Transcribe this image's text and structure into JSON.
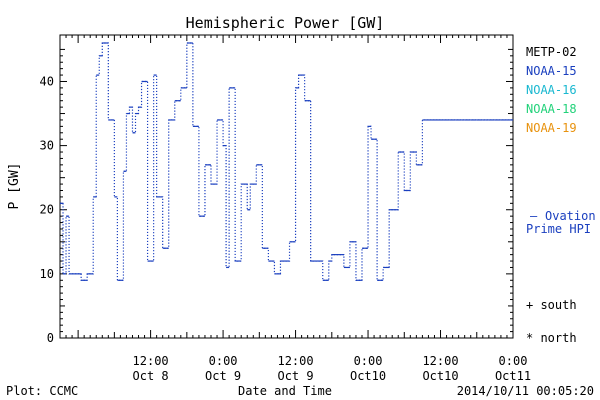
{
  "chart_data": {
    "type": "line",
    "title": "Hemispheric Power [GW]",
    "xlabel": "Date and Time",
    "ylabel": "P [GW]",
    "ylim": [
      0,
      46
    ],
    "y_ticks": [
      0,
      10,
      20,
      30,
      40
    ],
    "x_ticks": [
      {
        "time": "12:00",
        "date": "Oct 8"
      },
      {
        "time": "0:00",
        "date": "Oct 9"
      },
      {
        "time": "12:00",
        "date": "Oct 9"
      },
      {
        "time": "0:00",
        "date": "Oct10"
      },
      {
        "time": "12:00",
        "date": "Oct10"
      },
      {
        "time": "0:00",
        "date": "Oct11"
      }
    ],
    "x_range": [
      "2014-10-07 21:00",
      "2014-10-11 00:00"
    ],
    "grid": false,
    "legend": [
      {
        "name": "METP-02",
        "color": "#000000"
      },
      {
        "name": "NOAA-15",
        "color": "#1a3fbf"
      },
      {
        "name": "NOAA-16",
        "color": "#19b8d0"
      },
      {
        "name": "NOAA-18",
        "color": "#22d27a"
      },
      {
        "name": "NOAA-19",
        "color": "#e8920e"
      }
    ],
    "right_labels": {
      "ovation_dash": "—",
      "ovation_line1": "Ovation",
      "ovation_line2": "Prime HPI",
      "south": "+ south",
      "north": "* north"
    },
    "series": [
      {
        "name": "Ovation Prime HPI",
        "color": "#1a3fbf",
        "style": "dotted-steps",
        "x": [
          "2014-10-07 21:00",
          "2014-10-07 21:30",
          "2014-10-07 22:00",
          "2014-10-07 22:30",
          "2014-10-07 23:30",
          "2014-10-08 00:30",
          "2014-10-08 01:30",
          "2014-10-08 02:30",
          "2014-10-08 03:00",
          "2014-10-08 03:30",
          "2014-10-08 04:00",
          "2014-10-08 05:00",
          "2014-10-08 06:00",
          "2014-10-08 06:30",
          "2014-10-08 07:30",
          "2014-10-08 08:00",
          "2014-10-08 08:30",
          "2014-10-08 09:00",
          "2014-10-08 09:30",
          "2014-10-08 10:00",
          "2014-10-08 10:30",
          "2014-10-08 11:30",
          "2014-10-08 12:30",
          "2014-10-08 13:00",
          "2014-10-08 14:00",
          "2014-10-08 15:00",
          "2014-10-08 16:00",
          "2014-10-08 17:00",
          "2014-10-08 18:00",
          "2014-10-08 19:00",
          "2014-10-08 20:00",
          "2014-10-08 21:00",
          "2014-10-08 22:00",
          "2014-10-08 23:00",
          "2014-10-08 23:30",
          "2014-10-09 00:00",
          "2014-10-09 00:30",
          "2014-10-09 01:00",
          "2014-10-09 02:00",
          "2014-10-09 03:00",
          "2014-10-09 04:00",
          "2014-10-09 04:30",
          "2014-10-09 05:30",
          "2014-10-09 06:30",
          "2014-10-09 07:30",
          "2014-10-09 08:30",
          "2014-10-09 09:30",
          "2014-10-09 11:00",
          "2014-10-09 12:00",
          "2014-10-09 12:30",
          "2014-10-09 13:30",
          "2014-10-09 14:30",
          "2014-10-09 15:30",
          "2014-10-09 16:30",
          "2014-10-09 17:30",
          "2014-10-09 18:00",
          "2014-10-09 19:00",
          "2014-10-09 20:00",
          "2014-10-09 21:00",
          "2014-10-09 22:00",
          "2014-10-09 23:00",
          "2014-10-10 00:00",
          "2014-10-10 00:30",
          "2014-10-10 01:30",
          "2014-10-10 02:30",
          "2014-10-10 03:30",
          "2014-10-10 05:00",
          "2014-10-10 06:00",
          "2014-10-10 07:00",
          "2014-10-10 08:00",
          "2014-10-10 09:00",
          "2014-10-10 09:30",
          "2014-10-10 10:30",
          "2014-10-10 11:30",
          "2014-10-10 12:30",
          "2014-10-10 13:30",
          "2014-10-10 14:30",
          "2014-10-10 15:30",
          "2014-10-10 16:00",
          "2014-10-10 17:00",
          "2014-10-10 18:00",
          "2014-10-10 19:00",
          "2014-10-10 19:30",
          "2014-10-10 20:00",
          "2014-10-10 21:00",
          "2014-10-10 22:00",
          "2014-10-10 23:00",
          "2014-10-10 23:30",
          "2014-10-11 00:00"
        ],
        "y": [
          21,
          10,
          19,
          10,
          10,
          9,
          10,
          22,
          41,
          44,
          46,
          34,
          22,
          9,
          26,
          35,
          36,
          32,
          35,
          36,
          40,
          12,
          41,
          22,
          14,
          34,
          37,
          39,
          46,
          33,
          19,
          27,
          24,
          34,
          34,
          30,
          11,
          39,
          12,
          24,
          20,
          24,
          27,
          14,
          12,
          10,
          12,
          15,
          39,
          41,
          37,
          12,
          12,
          9,
          12,
          13,
          13,
          11,
          15,
          9,
          14,
          33,
          31,
          9,
          11,
          20,
          29,
          23,
          29,
          27,
          34,
          34,
          34,
          34,
          34,
          34,
          34,
          34,
          34,
          34,
          34,
          34,
          34,
          34,
          34,
          34,
          34,
          34,
          34
        ]
      }
    ]
  },
  "footer": {
    "left": "Plot: CCMC",
    "center": "Date and Time",
    "right": "2014/10/11 00:05:20"
  }
}
